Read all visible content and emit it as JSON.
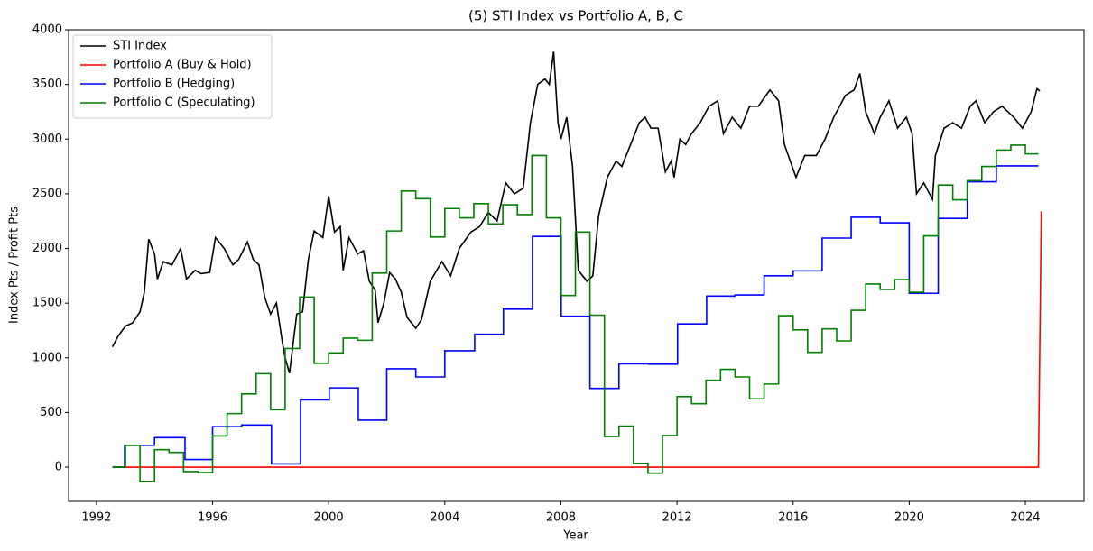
{
  "chart_data": {
    "type": "line",
    "title": "(5) STI Index vs Portfolio A, B, C",
    "x_label": "Year",
    "y_label": "Index Pts / Profit Pts",
    "xlim": [
      1991.04,
      2026.02
    ],
    "xticks": [
      1992,
      1996,
      2000,
      2004,
      2008,
      2012,
      2016,
      2020,
      2024
    ],
    "ylim": [
      -313,
      4000
    ],
    "yticks": [
      0,
      500,
      1000,
      1500,
      2000,
      2500,
      3000,
      3500,
      4000
    ],
    "grid": false,
    "legend": "upper left",
    "series": [
      {
        "name": "STI Index",
        "color": "#000000",
        "drawstyle": "default",
        "x": [
          1992.55,
          1992.75,
          1993.0,
          1993.25,
          1993.5,
          1993.65,
          1993.8,
          1994.0,
          1994.1,
          1994.3,
          1994.6,
          1994.9,
          1995.1,
          1995.4,
          1995.6,
          1995.9,
          1996.1,
          1996.4,
          1996.7,
          1996.9,
          1997.2,
          1997.4,
          1997.6,
          1997.8,
          1998.0,
          1998.2,
          1998.4,
          1998.5,
          1998.65,
          1998.9,
          1999.1,
          1999.3,
          1999.5,
          1999.8,
          2000.0,
          2000.2,
          2000.4,
          2000.5,
          2000.7,
          2001.0,
          2001.2,
          2001.4,
          2001.6,
          2001.7,
          2001.9,
          2002.1,
          2002.3,
          2002.5,
          2002.7,
          2003.0,
          2003.2,
          2003.5,
          2003.9,
          2004.2,
          2004.5,
          2004.9,
          2005.2,
          2005.5,
          2005.8,
          2006.1,
          2006.4,
          2006.7,
          2006.95,
          2007.2,
          2007.45,
          2007.6,
          2007.75,
          2007.9,
          2008.0,
          2008.2,
          2008.4,
          2008.6,
          2008.9,
          2009.1,
          2009.3,
          2009.6,
          2009.9,
          2010.1,
          2010.4,
          2010.7,
          2010.9,
          2011.1,
          2011.35,
          2011.6,
          2011.8,
          2011.9,
          2012.1,
          2012.3,
          2012.5,
          2012.8,
          2013.1,
          2013.4,
          2013.6,
          2013.9,
          2014.2,
          2014.5,
          2014.8,
          2015.2,
          2015.5,
          2015.7,
          2015.9,
          2016.1,
          2016.4,
          2016.8,
          2017.1,
          2017.4,
          2017.8,
          2018.1,
          2018.3,
          2018.5,
          2018.8,
          2019.0,
          2019.3,
          2019.6,
          2019.9,
          2020.1,
          2020.25,
          2020.5,
          2020.8,
          2020.9,
          2021.2,
          2021.5,
          2021.8,
          2022.1,
          2022.3,
          2022.6,
          2022.9,
          2023.2,
          2023.6,
          2023.9,
          2024.2,
          2024.4,
          2024.5
        ],
        "values": [
          1100,
          1200,
          1290,
          1320,
          1420,
          1600,
          2085,
          1950,
          1720,
          1880,
          1850,
          2000,
          1720,
          1800,
          1770,
          1780,
          2100,
          2000,
          1850,
          1900,
          2060,
          1900,
          1850,
          1550,
          1400,
          1500,
          1150,
          1000,
          860,
          1400,
          1420,
          1900,
          2160,
          2100,
          2480,
          2150,
          2200,
          1800,
          2100,
          1950,
          1980,
          1700,
          1620,
          1320,
          1500,
          1780,
          1720,
          1600,
          1370,
          1270,
          1350,
          1700,
          1880,
          1750,
          2000,
          2150,
          2200,
          2330,
          2250,
          2600,
          2500,
          2550,
          3150,
          3500,
          3550,
          3500,
          3800,
          3150,
          3000,
          3200,
          2750,
          1800,
          1700,
          1750,
          2300,
          2650,
          2800,
          2750,
          2950,
          3150,
          3200,
          3100,
          3100,
          2700,
          2800,
          2650,
          3000,
          2950,
          3050,
          3150,
          3300,
          3350,
          3050,
          3200,
          3100,
          3300,
          3300,
          3450,
          3350,
          2950,
          2800,
          2650,
          2850,
          2850,
          3000,
          3200,
          3400,
          3450,
          3600,
          3250,
          3050,
          3200,
          3350,
          3100,
          3200,
          3050,
          2500,
          2600,
          2450,
          2850,
          3100,
          3150,
          3100,
          3300,
          3350,
          3150,
          3250,
          3300,
          3200,
          3100,
          3250,
          3460,
          3440
        ]
      },
      {
        "name": "Portfolio A (Buy & Hold)",
        "color": "#ff0000",
        "drawstyle": "default",
        "x": [
          1992.55,
          2024.45,
          2024.55
        ],
        "values": [
          0,
          0,
          2340
        ]
      },
      {
        "name": "Portfolio B (Hedging)",
        "color": "#0000ff",
        "drawstyle": "steps-post",
        "x": [
          1992.55,
          1992.97,
          1994.0,
          1995.05,
          1996.0,
          1997.0,
          1998.03,
          1999.03,
          2000.02,
          2001.02,
          2002.0,
          2003.0,
          2004.0,
          2005.03,
          2006.02,
          2007.02,
          2008.01,
          2009.0,
          2010.0,
          2011.03,
          2012.02,
          2013.02,
          2014.0,
          2015.0,
          2016.0,
          2017.0,
          2018.0,
          2019.0,
          2020.0,
          2021.0,
          2022.0,
          2023.0,
          2024.45
        ],
        "values": [
          0,
          200,
          270,
          70,
          370,
          385,
          30,
          615,
          725,
          430,
          900,
          825,
          1065,
          1215,
          1445,
          2110,
          1380,
          720,
          945,
          942,
          1310,
          1565,
          1575,
          1750,
          1795,
          2095,
          2285,
          2235,
          1590,
          2275,
          2610,
          2755,
          2755
        ]
      },
      {
        "name": "Portfolio C (Speculating)",
        "color": "#008000",
        "drawstyle": "steps-post",
        "x": [
          1992.55,
          1993.0,
          1993.5,
          1994.0,
          1994.5,
          1995.0,
          1995.5,
          1996.0,
          1996.5,
          1997.0,
          1997.5,
          1998.0,
          1998.5,
          1999.0,
          1999.5,
          2000.0,
          2000.5,
          2001.0,
          2001.5,
          2002.0,
          2002.5,
          2003.0,
          2003.5,
          2004.0,
          2004.5,
          2005.0,
          2005.5,
          2006.0,
          2006.5,
          2007.0,
          2007.5,
          2008.0,
          2008.5,
          2009.0,
          2009.5,
          2010.0,
          2010.5,
          2011.0,
          2011.5,
          2012.0,
          2012.5,
          2013.0,
          2013.5,
          2014.0,
          2014.5,
          2015.0,
          2015.5,
          2016.0,
          2016.5,
          2017.0,
          2017.5,
          2018.0,
          2018.5,
          2019.0,
          2019.5,
          2020.0,
          2020.5,
          2021.0,
          2021.5,
          2022.0,
          2022.5,
          2023.0,
          2023.5,
          2024.0,
          2024.45
        ],
        "values": [
          0,
          200,
          -130,
          160,
          135,
          -40,
          -50,
          285,
          490,
          670,
          855,
          525,
          1085,
          1555,
          950,
          1045,
          1180,
          1160,
          1775,
          2160,
          2525,
          2455,
          2105,
          2365,
          2280,
          2410,
          2225,
          2400,
          2310,
          2850,
          2280,
          1570,
          2150,
          1390,
          280,
          375,
          35,
          -55,
          290,
          645,
          580,
          795,
          895,
          825,
          625,
          760,
          1385,
          1255,
          1050,
          1265,
          1155,
          1435,
          1675,
          1625,
          1715,
          1600,
          2115,
          2580,
          2445,
          2620,
          2750,
          2900,
          2945,
          2865,
          2865
        ]
      }
    ]
  }
}
